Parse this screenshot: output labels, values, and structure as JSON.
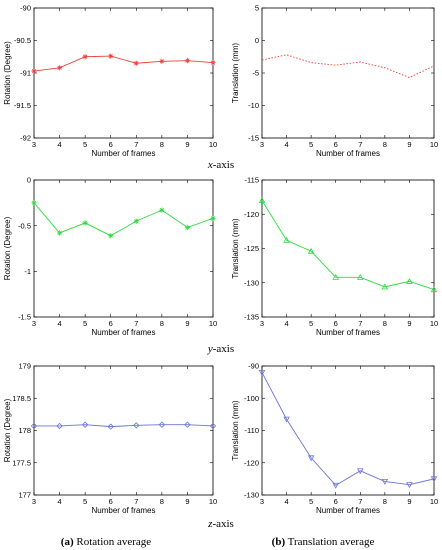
{
  "figure": {
    "row_captions": [
      {
        "axis": "x",
        "suffix": "-axis"
      },
      {
        "axis": "y",
        "suffix": "-axis"
      },
      {
        "axis": "z",
        "suffix": "-axis"
      }
    ],
    "sub_captions": [
      {
        "letter": "(a)",
        "text": " Rotation average"
      },
      {
        "letter": "(b)",
        "text": " Translation average"
      }
    ]
  },
  "chart_data": [
    {
      "id": "x-rot",
      "type": "line",
      "row": 0,
      "col": 0,
      "xlabel": "Number of frames",
      "ylabel": "Rotation (Degree)",
      "xlim": [
        3,
        10
      ],
      "ylim": [
        -92,
        -90
      ],
      "xticks": [
        3,
        4,
        5,
        6,
        7,
        8,
        9,
        10
      ],
      "yticks": [
        -92,
        -91.5,
        -91,
        -90.5,
        -90
      ],
      "series": [
        {
          "color": "#e8423b",
          "line_style": "solid",
          "marker": "star",
          "x": [
            3,
            4,
            5,
            6,
            7,
            8,
            9,
            10
          ],
          "y": [
            -90.97,
            -90.92,
            -90.75,
            -90.74,
            -90.85,
            -90.82,
            -90.81,
            -90.84
          ]
        }
      ]
    },
    {
      "id": "x-trans",
      "type": "line",
      "row": 0,
      "col": 1,
      "xlabel": "Number of frames",
      "ylabel": "Translation (mm)",
      "xlim": [
        3,
        10
      ],
      "ylim": [
        -15,
        5
      ],
      "xticks": [
        3,
        4,
        5,
        6,
        7,
        8,
        9,
        10
      ],
      "yticks": [
        -15,
        -10,
        -5,
        0,
        5
      ],
      "series": [
        {
          "color": "#e8423b",
          "line_style": "dotted",
          "marker": "none",
          "x": [
            3,
            4,
            5,
            6,
            7,
            8,
            9,
            10
          ],
          "y": [
            -3.0,
            -2.2,
            -3.4,
            -3.8,
            -3.3,
            -4.2,
            -5.7,
            -3.9
          ]
        }
      ]
    },
    {
      "id": "y-rot",
      "type": "line",
      "row": 1,
      "col": 0,
      "xlabel": "Number of frames",
      "ylabel": "Rotation (Degree)",
      "xlim": [
        3,
        10
      ],
      "ylim": [
        -1.5,
        0
      ],
      "xticks": [
        3,
        4,
        5,
        6,
        7,
        8,
        9,
        10
      ],
      "yticks": [
        -1.5,
        -1,
        -0.5,
        0
      ],
      "series": [
        {
          "color": "#2ddc3c",
          "line_style": "solid",
          "marker": "star",
          "x": [
            3,
            4,
            5,
            6,
            7,
            8,
            9,
            10
          ],
          "y": [
            -0.25,
            -0.58,
            -0.47,
            -0.61,
            -0.45,
            -0.33,
            -0.52,
            -0.42
          ]
        }
      ]
    },
    {
      "id": "y-trans",
      "type": "line",
      "row": 1,
      "col": 1,
      "xlabel": "Number of frames",
      "ylabel": "Translation (mm)",
      "xlim": [
        3,
        10
      ],
      "ylim": [
        -135,
        -115
      ],
      "xticks": [
        3,
        4,
        5,
        6,
        7,
        8,
        9,
        10
      ],
      "yticks": [
        -135,
        -130,
        -125,
        -120,
        -115
      ],
      "series": [
        {
          "color": "#2ddc3c",
          "line_style": "solid",
          "marker": "triangle-up",
          "x": [
            3,
            4,
            5,
            6,
            7,
            8,
            9,
            10
          ],
          "y": [
            -118.0,
            -123.8,
            -125.4,
            -129.2,
            -129.2,
            -130.6,
            -129.8,
            -131.0
          ]
        }
      ]
    },
    {
      "id": "z-rot",
      "type": "line",
      "row": 2,
      "col": 0,
      "xlabel": "Number of frames",
      "ylabel": "Rotation (Degree)",
      "xlim": [
        3,
        10
      ],
      "ylim": [
        177,
        179
      ],
      "xticks": [
        3,
        4,
        5,
        6,
        7,
        8,
        9,
        10
      ],
      "yticks": [
        177,
        177.5,
        178,
        178.5,
        179
      ],
      "series": [
        {
          "color": "#6a74d8",
          "line_style": "solid",
          "marker": "diamond",
          "x": [
            3,
            4,
            5,
            6,
            7,
            8,
            9,
            10
          ],
          "y": [
            178.07,
            178.07,
            178.09,
            178.06,
            178.08,
            178.09,
            178.09,
            178.07
          ]
        }
      ]
    },
    {
      "id": "z-trans",
      "type": "line",
      "row": 2,
      "col": 1,
      "xlabel": "Number of frames",
      "ylabel": "Translation (mm)",
      "xlim": [
        3,
        10
      ],
      "ylim": [
        -130,
        -90
      ],
      "xticks": [
        3,
        4,
        5,
        6,
        7,
        8,
        9,
        10
      ],
      "yticks": [
        -130,
        -120,
        -110,
        -100,
        -90
      ],
      "series": [
        {
          "color": "#6a74d8",
          "line_style": "solid",
          "marker": "triangle-down",
          "x": [
            3,
            4,
            5,
            6,
            7,
            8,
            9,
            10
          ],
          "y": [
            -92.0,
            -106.5,
            -118.5,
            -127.0,
            -122.5,
            -125.8,
            -126.8,
            -125.0
          ]
        }
      ]
    }
  ]
}
